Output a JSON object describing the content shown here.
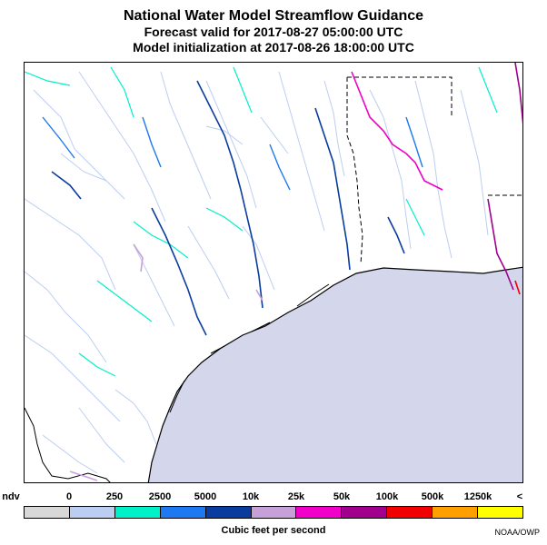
{
  "title": {
    "main": "National Water Model Streamflow Guidance",
    "forecast": "Forecast valid for 2017-08-27 05:00:00 UTC",
    "init": "Model initialization at 2017-08-26 18:00:00 UTC"
  },
  "legend": {
    "labels": [
      "ndv",
      "0",
      "250",
      "2500",
      "5000",
      "10k",
      "25k",
      "50k",
      "100k",
      "500k",
      "1250k",
      "<"
    ],
    "colors": [
      "#d8d8d8",
      "#bccdf2",
      "#00f0c8",
      "#1e78f0",
      "#0a3ca0",
      "#c8a0d8",
      "#f000c8",
      "#a0008c",
      "#f00000",
      "#ffa000",
      "#ffff00"
    ],
    "units": "Cubic feet per second"
  },
  "credit": "NOAA/OWP",
  "map": {
    "water_color": "#d4d6ec",
    "coast_color": "#000000",
    "border_color": "#000000"
  }
}
